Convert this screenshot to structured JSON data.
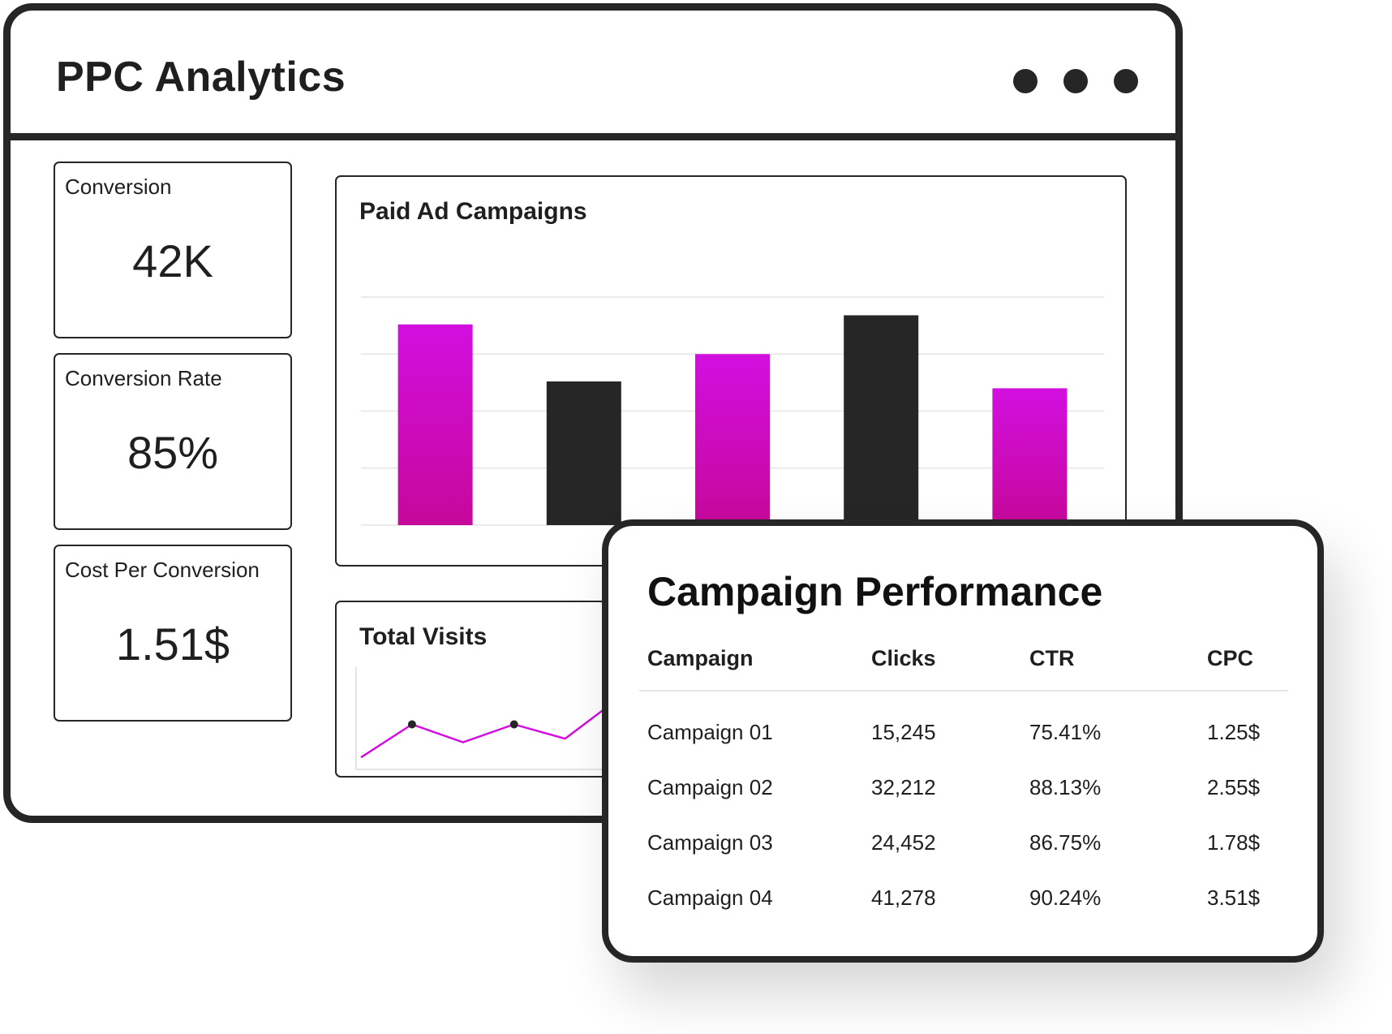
{
  "app": {
    "title": "PPC Analytics"
  },
  "window_controls": [
    "dot-1",
    "dot-2",
    "dot-3"
  ],
  "stats": [
    {
      "label": "Conversion",
      "value": "42K"
    },
    {
      "label": "Conversion Rate",
      "value": "85%"
    },
    {
      "label": "Cost Per Conversion",
      "value": "1.51$"
    }
  ],
  "colors": {
    "accent_top": "#d20fe0",
    "accent_bottom": "#c6089a",
    "dark": "#262626",
    "grid": "#e4e4e4"
  },
  "paid_ads": {
    "title": "Paid Ad Campaigns",
    "chart_data": {
      "type": "bar",
      "title": "Paid Ad Campaigns",
      "categories": [
        "",
        "",
        "",
        "",
        ""
      ],
      "values": [
        88,
        63,
        75,
        92,
        60
      ],
      "bar_colors": [
        "accent",
        "dark",
        "accent",
        "dark",
        "accent"
      ],
      "ylim": [
        0,
        100
      ],
      "grid": true,
      "xlabel": "",
      "ylabel": ""
    }
  },
  "visits": {
    "title": "Total Visits",
    "chart_data": {
      "type": "line",
      "title": "Total Visits",
      "x": [
        0,
        1,
        2,
        3,
        4,
        5,
        6
      ],
      "values": [
        8,
        45,
        25,
        45,
        29,
        72,
        65
      ],
      "markers_at": [
        1,
        3,
        5
      ],
      "ylim": [
        0,
        100
      ],
      "xlabel": "",
      "ylabel": ""
    }
  },
  "performance": {
    "title": "Campaign Performance",
    "columns": [
      "Campaign",
      "Clicks",
      "CTR",
      "CPC"
    ],
    "rows": [
      [
        "Campaign 01",
        "15,245",
        "75.41%",
        "1.25$"
      ],
      [
        "Campaign 02",
        "32,212",
        "88.13%",
        "2.55$"
      ],
      [
        "Campaign 03",
        "24,452",
        "86.75%",
        "1.78$"
      ],
      [
        "Campaign 04",
        "41,278",
        "90.24%",
        "3.51$"
      ]
    ]
  }
}
